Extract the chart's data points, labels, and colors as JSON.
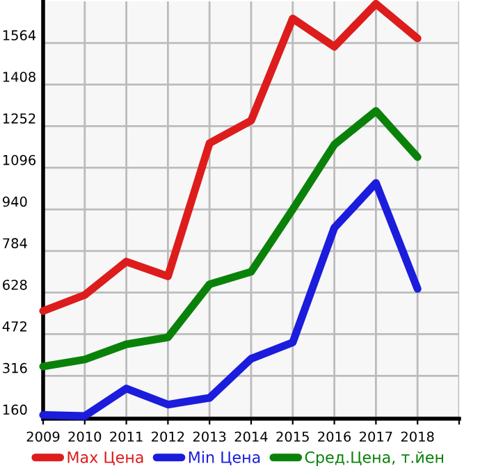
{
  "chart_data": {
    "type": "line",
    "x": [
      2009,
      2010,
      2011,
      2012,
      2013,
      2014,
      2015,
      2016,
      2017,
      2018
    ],
    "series": [
      {
        "name": "Max Цена",
        "color": "#dd1c1c",
        "values": [
          559,
          619,
          744,
          689,
          1188,
          1273,
          1656,
          1550,
          1711,
          1581
        ]
      },
      {
        "name": "Min Цена",
        "color": "#1c1cdd",
        "values": [
          169,
          165,
          268,
          208,
          233,
          380,
          441,
          871,
          1039,
          642
        ]
      },
      {
        "name": "Сред.Цена, т.йен",
        "color": "#0a820a",
        "values": [
          351,
          377,
          434,
          460,
          659,
          706,
          940,
          1183,
          1309,
          1136
        ]
      }
    ],
    "xlim": [
      2009,
      2019
    ],
    "xticks": [
      2009,
      2010,
      2011,
      2012,
      2013,
      2014,
      2015,
      2016,
      2017,
      2018,
      {
        "value": 2019,
        "label": null
      }
    ],
    "ylim": [
      155,
      1720
    ],
    "yticks": [
      160,
      316,
      472,
      628,
      784,
      940,
      1096,
      1252,
      1408,
      1564
    ],
    "grid": true,
    "legend": "bottom",
    "marker": "none",
    "line_style": "solid"
  }
}
